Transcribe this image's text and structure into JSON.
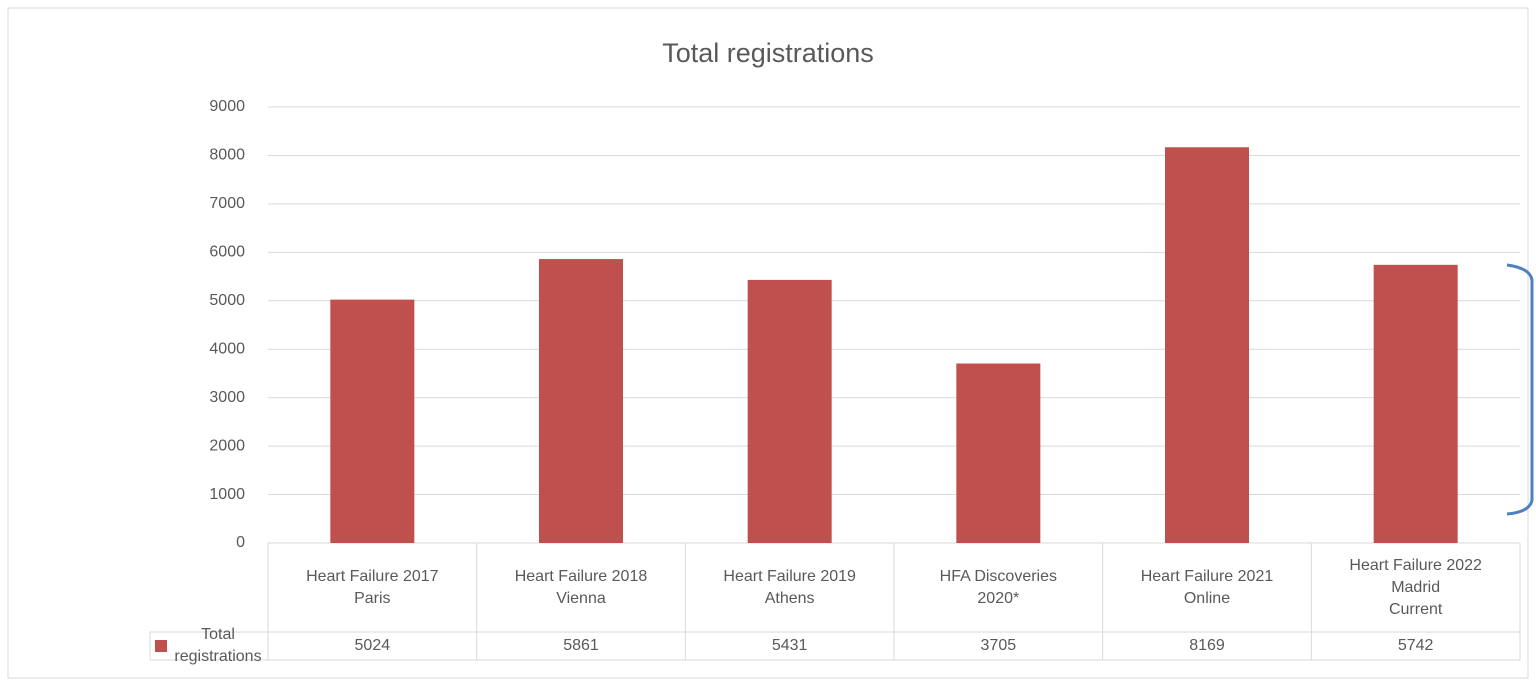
{
  "chart_data": {
    "type": "bar",
    "title": "Total registrations",
    "categories": [
      "Heart Failure 2017\nParis",
      "Heart Failure 2018\nVienna",
      "Heart Failure 2019\nAthens",
      "HFA Discoveries\n2020*",
      "Heart Failure 2021\nOnline",
      "Heart Failure 2022\nMadrid\nCurrent"
    ],
    "series": [
      {
        "name": "Total registrations",
        "color": "#c0504d",
        "values": [
          5024,
          5861,
          5431,
          3705,
          8169,
          5742
        ]
      }
    ],
    "ylim": [
      0,
      9000
    ],
    "yticks": [
      0,
      1000,
      2000,
      3000,
      4000,
      5000,
      6000,
      7000,
      8000,
      9000
    ],
    "grid": true
  }
}
